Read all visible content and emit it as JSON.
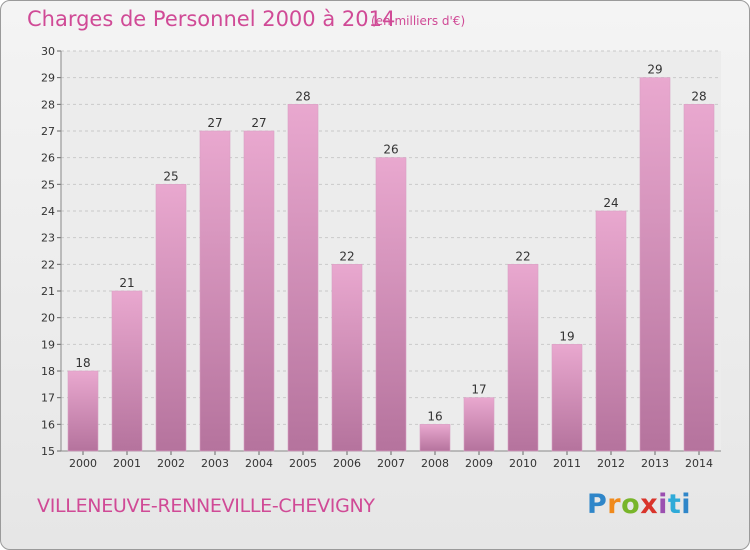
{
  "header": {
    "title": "Charges de Personnel 2000 à 2014",
    "subtitle": "(en milliers d'€)"
  },
  "footer": {
    "place": "VILLENEUVE-RENNEVILLE-CHEVIGNY",
    "logo": "Proxiti"
  },
  "colors": {
    "title": "#d04a96",
    "bar_top": "#e9a8cf",
    "bar_bottom": "#b5739d"
  },
  "chart_data": {
    "type": "bar",
    "title": "Charges de Personnel 2000 à 2014",
    "subtitle": "(en milliers d'€)",
    "categories": [
      "2000",
      "2001",
      "2002",
      "2003",
      "2004",
      "2005",
      "2006",
      "2007",
      "2008",
      "2009",
      "2010",
      "2011",
      "2012",
      "2013",
      "2014"
    ],
    "values": [
      18,
      21,
      25,
      27,
      27,
      28,
      22,
      26,
      16,
      17,
      22,
      19,
      24,
      29,
      28
    ],
    "ylim": [
      15,
      30
    ],
    "yticks": [
      15,
      16,
      17,
      18,
      19,
      20,
      21,
      22,
      23,
      24,
      25,
      26,
      27,
      28,
      29,
      30
    ],
    "grid": true
  }
}
